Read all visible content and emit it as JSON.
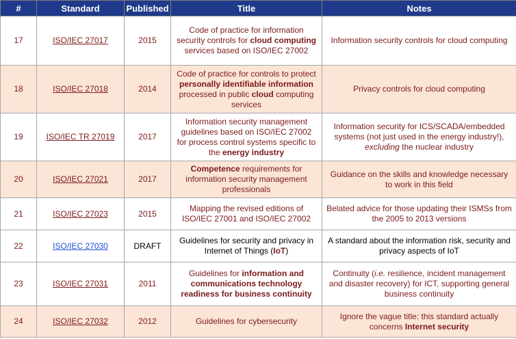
{
  "header": {
    "num": "#",
    "standard": "Standard",
    "published": "Published",
    "title": "Title",
    "notes": "Notes"
  },
  "rows": [
    {
      "num": "17",
      "standard": "ISO/IEC 27017",
      "published": "2015",
      "title": [
        "Code of practice for information security controls for ",
        "cloud computing",
        " services based on ISO/IEC 27002"
      ],
      "notes": [
        "Information security controls for cloud computing"
      ]
    },
    {
      "num": "18",
      "standard": "ISO/IEC 27018",
      "published": "2014",
      "title": [
        "Code of practice for controls to protect ",
        "personally identifiable information",
        " processed in public ",
        "cloud",
        " computing services"
      ],
      "notes": [
        "Privacy controls for cloud computing"
      ]
    },
    {
      "num": "19",
      "standard": "ISO/IEC TR 27019",
      "published": "2017",
      "title": [
        "Information security management guidelines based on ISO/IEC 27002 for process control systems specific to the ",
        "energy industry"
      ],
      "notes": [
        "Information security for ICS/SCADA/embedded systems (not just used in the energy industry!), ",
        "excluding",
        " the nuclear industry"
      ]
    },
    {
      "num": "20",
      "standard": "ISO/IEC 27021",
      "published": "2017",
      "title": [
        "Competence",
        " requirements for information security management professionals"
      ],
      "notes": [
        "Guidance on the skills and knowledge necessary to work in this field"
      ]
    },
    {
      "num": "21",
      "standard": "ISO/IEC 27023",
      "published": "2015",
      "title": [
        "Mapping the revised editions of ISO/IEC 27001 and ISO/IEC 27002"
      ],
      "notes": [
        "Belated advice for those updating their ISMSs from the 2005 to 2013 versions"
      ]
    },
    {
      "num": "22",
      "standard": "ISO/IEC 27030",
      "published": "DRAFT",
      "title": [
        "Guidelines for security and privacy in Internet of Things (",
        "IoT",
        ")"
      ],
      "notes": [
        "A standard about the information risk, security and privacy aspects of IoT"
      ]
    },
    {
      "num": "23",
      "standard": "ISO/IEC 27031",
      "published": "2011",
      "title": [
        "Guidelines for ",
        "information and communications technology readiness for business continuity"
      ],
      "notes": [
        "Continuity (",
        "i.e.",
        " resilience, incident management and disaster recovery) for ICT, supporting general business continuity"
      ]
    },
    {
      "num": "24",
      "standard": "ISO/IEC 27032",
      "published": "2012",
      "title": [
        "Guidelines for cybersecurity"
      ],
      "notes": [
        "Ignore the vague title: this standard actually concerns ",
        "Internet security"
      ]
    }
  ]
}
